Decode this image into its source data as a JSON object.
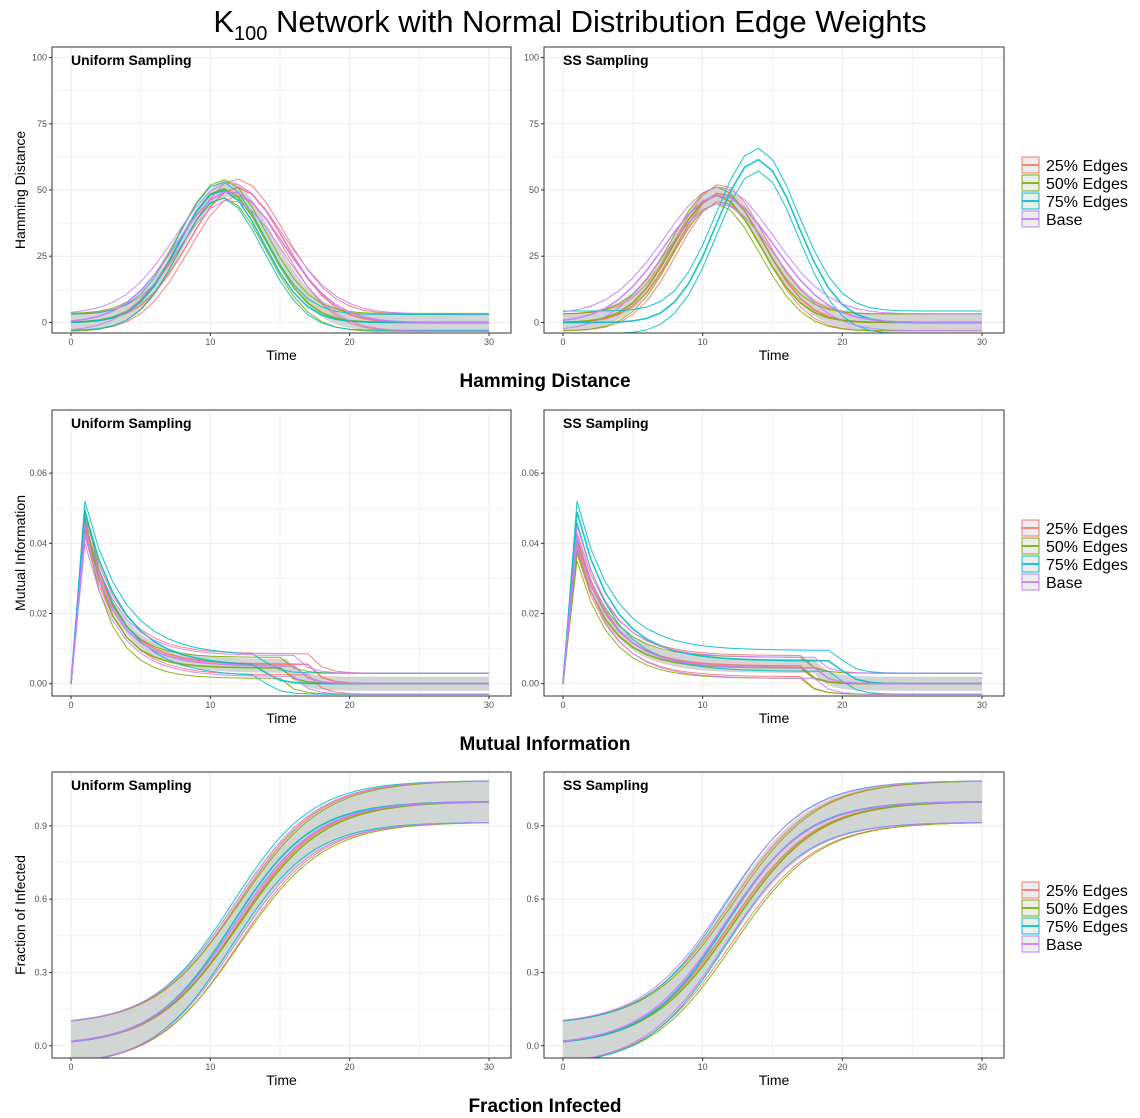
{
  "page": {
    "title_main": "K",
    "title_sub": "100",
    "title_rest": " Network with Normal Distribution Edge Weights"
  },
  "colors": {
    "25% Edges": "#F8766D",
    "50% Edges": "#7CAE00",
    "75% Edges": "#00BFC4",
    "Base": "#C77CFF",
    "band_fill": "#c9cfcc",
    "grid": "#ebebeb",
    "panel_border": "#333333"
  },
  "chart_data": [
    {
      "type": "line",
      "row_title": "Hamming Distance",
      "ylabel": "Hamming Distance",
      "xlabel": "Time",
      "xlim": [
        0,
        30
      ],
      "ylim": [
        -4,
        104
      ],
      "x_ticks": [
        0,
        10,
        20,
        30
      ],
      "y_ticks": [
        0,
        25,
        50,
        75,
        100
      ],
      "legend": [
        "25% Edges",
        "50% Edges",
        "75% Edges",
        "Base"
      ],
      "legend_position": "right",
      "panels": [
        {
          "title": "Uniform Sampling",
          "band": {
            "type": "bell",
            "peak": 11.2,
            "width": 3.2,
            "amp": 50.5,
            "base": 0,
            "half": 3.2
          },
          "series": [
            {
              "name": "25% Edges",
              "peak": 11.9,
              "width": 3.4,
              "amp": 51.0,
              "spread": 3.2
            },
            {
              "name": "50% Edges",
              "peak": 10.9,
              "width": 3.1,
              "amp": 50.5,
              "spread": 3.4
            },
            {
              "name": "75% Edges",
              "peak": 10.8,
              "width": 3.0,
              "amp": 50.0,
              "spread": 3.0
            },
            {
              "name": "Base",
              "peak": 11.4,
              "width": 3.8,
              "amp": 49.5,
              "spread": 3.3
            }
          ]
        },
        {
          "title": "SS Sampling",
          "band": {
            "type": "bell",
            "peak": 11.2,
            "width": 3.3,
            "amp": 48.0,
            "base": 0,
            "half": 3.3
          },
          "series": [
            {
              "name": "25% Edges",
              "peak": 11.3,
              "width": 3.1,
              "amp": 49.0,
              "spread": 3.2
            },
            {
              "name": "50% Edges",
              "peak": 11.0,
              "width": 3.1,
              "amp": 48.0,
              "spread": 3.2
            },
            {
              "name": "75% Edges",
              "peak": 13.9,
              "width": 2.9,
              "amp": 61.5,
              "spread": 4.3
            },
            {
              "name": "Base",
              "peak": 11.2,
              "width": 3.9,
              "amp": 48.0,
              "spread": 3.2
            }
          ]
        }
      ]
    },
    {
      "type": "line",
      "row_title": "Mutual Information",
      "ylabel": "Mutual Information",
      "xlabel": "Time",
      "xlim": [
        0,
        30
      ],
      "ylim": [
        -0.0035,
        0.078
      ],
      "x_ticks": [
        0,
        10,
        20,
        30
      ],
      "y_ticks": [
        0.0,
        0.02,
        0.04,
        0.06
      ],
      "y_tick_labels": [
        "0.00",
        "0.02",
        "0.04",
        "0.06"
      ],
      "legend": [
        "25% Edges",
        "50% Edges",
        "75% Edges",
        "Base"
      ],
      "legend_position": "right",
      "panels": [
        {
          "title": "Uniform Sampling",
          "band": {
            "type": "mi",
            "peak": 0.046,
            "tau": 2.3,
            "plateau": 0.005,
            "cut": 15.5,
            "half": 0.002
          },
          "series": [
            {
              "name": "25% Edges",
              "peak": 0.045,
              "tau": 2.3,
              "plateau": 0.0055,
              "cut": 17,
              "spread": 0.003
            },
            {
              "name": "50% Edges",
              "peak": 0.047,
              "tau": 1.9,
              "plateau": 0.0045,
              "cut": 15,
              "spread": 0.003
            },
            {
              "name": "75% Edges",
              "peak": 0.049,
              "tau": 2.7,
              "plateau": 0.005,
              "cut": 13.5,
              "spread": 0.003
            },
            {
              "name": "Base",
              "peak": 0.043,
              "tau": 2.3,
              "plateau": 0.005,
              "cut": 16,
              "spread": 0.003
            }
          ]
        },
        {
          "title": "SS Sampling",
          "band": {
            "type": "mi",
            "peak": 0.04,
            "tau": 2.4,
            "plateau": 0.005,
            "cut": 18,
            "half": 0.002
          },
          "series": [
            {
              "name": "25% Edges",
              "peak": 0.04,
              "tau": 2.4,
              "plateau": 0.005,
              "cut": 17,
              "spread": 0.003
            },
            {
              "name": "50% Edges",
              "peak": 0.038,
              "tau": 2.3,
              "plateau": 0.0045,
              "cut": 17,
              "spread": 0.003
            },
            {
              "name": "75% Edges",
              "peak": 0.049,
              "tau": 2.6,
              "plateau": 0.0065,
              "cut": 19.5,
              "spread": 0.003
            },
            {
              "name": "Base",
              "peak": 0.042,
              "tau": 2.4,
              "plateau": 0.0045,
              "cut": 18,
              "spread": 0.003
            }
          ]
        }
      ]
    },
    {
      "type": "line",
      "row_title": "Fraction Infected",
      "ylabel": "Fraction of Infected",
      "xlabel": "Time",
      "xlim": [
        0,
        30
      ],
      "ylim": [
        -0.05,
        1.12
      ],
      "x_ticks": [
        0,
        10,
        20,
        30
      ],
      "y_ticks": [
        0.0,
        0.3,
        0.6,
        0.9
      ],
      "y_tick_labels": [
        "0.0",
        "0.3",
        "0.6",
        "0.9"
      ],
      "legend": [
        "25% Edges",
        "50% Edges",
        "75% Edges",
        "Base"
      ],
      "legend_position": "right",
      "panels": [
        {
          "title": "Uniform Sampling",
          "band": {
            "type": "sig",
            "mid": 11.8,
            "k": 0.34,
            "top": 1.0,
            "half": 0.085
          },
          "series": [
            {
              "name": "25% Edges",
              "mid": 12.0,
              "k": 0.34,
              "top": 1.0,
              "spread": 0.085
            },
            {
              "name": "50% Edges",
              "mid": 12.1,
              "k": 0.33,
              "top": 1.0,
              "spread": 0.085
            },
            {
              "name": "75% Edges",
              "mid": 11.6,
              "k": 0.35,
              "top": 1.0,
              "spread": 0.085
            },
            {
              "name": "Base",
              "mid": 11.8,
              "k": 0.34,
              "top": 1.0,
              "spread": 0.085
            }
          ]
        },
        {
          "title": "SS Sampling",
          "band": {
            "type": "sig",
            "mid": 11.8,
            "k": 0.34,
            "top": 1.0,
            "half": 0.085
          },
          "series": [
            {
              "name": "25% Edges",
              "mid": 12.0,
              "k": 0.33,
              "top": 1.0,
              "spread": 0.085
            },
            {
              "name": "50% Edges",
              "mid": 12.2,
              "k": 0.33,
              "top": 1.0,
              "spread": 0.085
            },
            {
              "name": "75% Edges",
              "mid": 11.7,
              "k": 0.35,
              "top": 1.0,
              "spread": 0.085
            },
            {
              "name": "Base",
              "mid": 11.6,
              "k": 0.34,
              "top": 1.0,
              "spread": 0.085
            }
          ]
        }
      ]
    }
  ]
}
